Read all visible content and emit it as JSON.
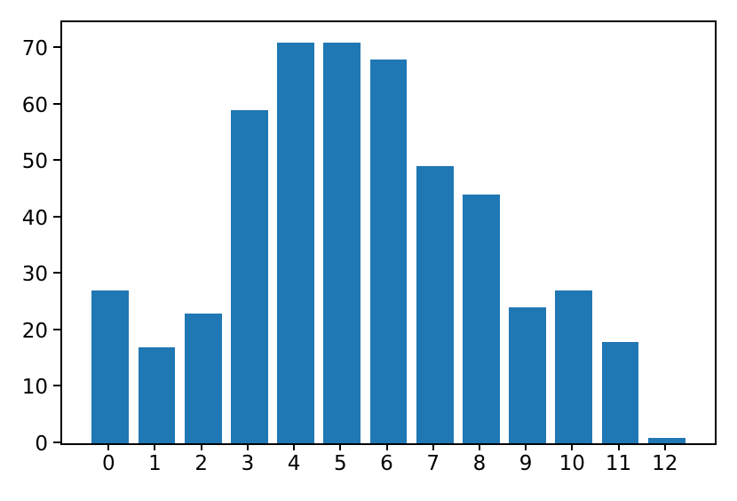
{
  "chart_data": {
    "type": "bar",
    "categories": [
      "0",
      "1",
      "2",
      "3",
      "4",
      "5",
      "6",
      "7",
      "8",
      "9",
      "10",
      "11",
      "12"
    ],
    "values": [
      27,
      17,
      23,
      59,
      71,
      71,
      68,
      49,
      44,
      24,
      27,
      18,
      1
    ],
    "title": "",
    "xlabel": "",
    "ylabel": "",
    "xlim": [
      -1.04,
      13.04
    ],
    "ylim": [
      0,
      74.55
    ],
    "yticks": [
      0,
      10,
      20,
      30,
      40,
      50,
      60,
      70
    ],
    "bar_width_data_units": 0.8,
    "bar_color": "#1f77b4",
    "spine_color": "#000000",
    "tick_color": "#000000",
    "background_color": "#ffffff",
    "grid": false,
    "legend": null
  }
}
